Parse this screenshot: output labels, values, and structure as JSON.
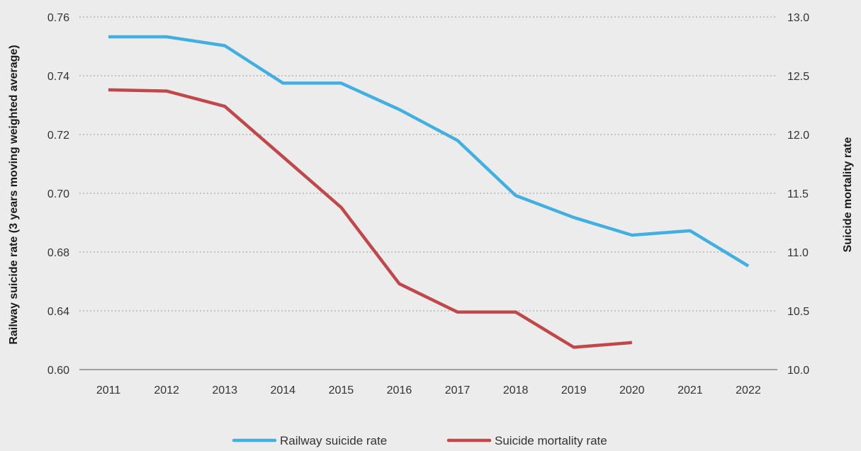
{
  "chart_data": {
    "type": "line",
    "x": [
      "2011",
      "2012",
      "2013",
      "2014",
      "2015",
      "2016",
      "2017",
      "2018",
      "2019",
      "2020",
      "2021",
      "2022"
    ],
    "series": [
      {
        "name": "Railway suicide rate",
        "axis": "left",
        "color": "#41b0e0",
        "values": [
          0.751,
          0.751,
          0.747,
          0.73,
          0.73,
          0.718,
          0.704,
          0.679,
          0.669,
          0.661,
          0.663,
          0.647
        ]
      },
      {
        "name": "Suicide mortality rate",
        "axis": "right",
        "color": "#c0474a",
        "values": [
          12.38,
          12.37,
          12.24,
          11.81,
          11.38,
          10.73,
          10.49,
          10.49,
          10.19,
          10.23,
          null,
          null
        ]
      }
    ],
    "y_left": {
      "label": "Railway suicide rate (3 years moving weighted average)",
      "ylim": [
        0.6,
        0.76
      ],
      "ticks": [
        "0.60",
        "0.64",
        "0.68",
        "0.70",
        "0.72",
        "0.74",
        "0.76"
      ]
    },
    "y_right": {
      "label": "Suicide mortality rate",
      "ylim": [
        10.0,
        13.0
      ],
      "ticks": [
        "10.0",
        "10.5",
        "11.0",
        "11.5",
        "12.0",
        "12.5",
        "13.0"
      ]
    },
    "grid": true,
    "legend_position": "bottom-center"
  }
}
